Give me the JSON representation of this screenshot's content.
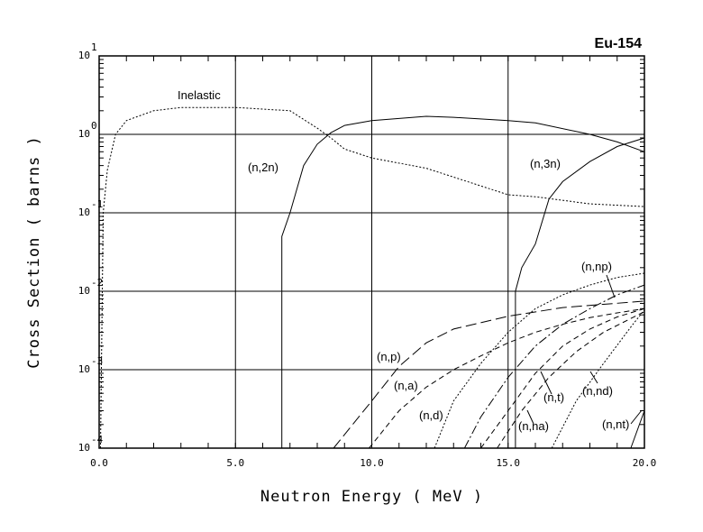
{
  "chart_data": {
    "type": "line",
    "title": "Eu-154",
    "xlabel": "Neutron Energy ( MeV )",
    "ylabel": "Cross Section ( barns )",
    "xlim": [
      0,
      20
    ],
    "ylim": [
      0.0001,
      10
    ],
    "yscale": "log",
    "grid": true,
    "xticks": [
      "0.0",
      "5.0",
      "10.0",
      "15.0",
      "20.0"
    ],
    "yticks": [
      {
        "base": "10",
        "exp": "1"
      },
      {
        "base": "10",
        "exp": "0"
      },
      {
        "base": "10",
        "exp": "-1"
      },
      {
        "base": "10",
        "exp": "-2"
      },
      {
        "base": "10",
        "exp": "-3"
      },
      {
        "base": "10",
        "exp": "-4"
      }
    ],
    "series": [
      {
        "name": "Inelastic",
        "style": "dotted",
        "x": [
          0.05,
          0.15,
          0.3,
          0.5,
          0.6,
          1,
          2,
          3,
          5,
          6,
          7,
          8,
          8.5,
          9,
          10,
          12,
          14,
          15,
          16,
          18,
          20
        ],
        "y": [
          0.0001,
          0.1,
          0.35,
          0.7,
          1.0,
          1.5,
          2.0,
          2.2,
          2.2,
          2.1,
          2.0,
          1.2,
          0.9,
          0.65,
          0.5,
          0.37,
          0.22,
          0.17,
          0.16,
          0.13,
          0.12
        ]
      },
      {
        "name": "(n,2n)",
        "style": "solid",
        "x": [
          6.7,
          6.7,
          7,
          7.5,
          8,
          8.5,
          9,
          10,
          12,
          13,
          15,
          16,
          18,
          19,
          20
        ],
        "y": [
          0.0001,
          0.05,
          0.1,
          0.4,
          0.75,
          1.05,
          1.3,
          1.5,
          1.7,
          1.65,
          1.5,
          1.4,
          1.0,
          0.8,
          0.6
        ]
      },
      {
        "name": "(n,3n)",
        "style": "solid",
        "x": [
          15.27,
          15.27,
          15.5,
          16,
          16.5,
          17,
          18,
          19,
          20
        ],
        "y": [
          0.0001,
          0.01,
          0.02,
          0.04,
          0.15,
          0.25,
          0.45,
          0.7,
          0.9
        ]
      },
      {
        "name": "(n,p)",
        "style": "longdash",
        "x": [
          8.6,
          10,
          11,
          12,
          13,
          15,
          17,
          20
        ],
        "y": [
          0.0001,
          0.0004,
          0.0011,
          0.0022,
          0.0033,
          0.0048,
          0.0062,
          0.0075
        ]
      },
      {
        "name": "(n,a)",
        "style": "dash",
        "x": [
          9.9,
          11,
          12,
          13,
          14,
          15,
          16,
          17,
          18,
          19,
          20
        ],
        "y": [
          0.0001,
          0.0003,
          0.0006,
          0.001,
          0.0015,
          0.0022,
          0.003,
          0.0038,
          0.0046,
          0.0053,
          0.006
        ]
      },
      {
        "name": "(n,d)",
        "style": "dotted",
        "x": [
          12.3,
          13,
          14,
          15,
          16,
          17,
          18,
          19,
          20
        ],
        "y": [
          0.0001,
          0.0004,
          0.0012,
          0.003,
          0.006,
          0.009,
          0.012,
          0.015,
          0.017
        ]
      },
      {
        "name": "(n,np)",
        "style": "dashdot",
        "x": [
          13.4,
          14,
          15,
          16,
          17,
          18,
          19,
          20
        ],
        "y": [
          0.0001,
          0.00025,
          0.0008,
          0.002,
          0.0038,
          0.006,
          0.009,
          0.012
        ]
      },
      {
        "name": "(n,t)",
        "style": "dash",
        "x": [
          14,
          15,
          16,
          17,
          18,
          19,
          20
        ],
        "y": [
          0.0001,
          0.0003,
          0.0009,
          0.002,
          0.0033,
          0.0047,
          0.006
        ]
      },
      {
        "name": "(n,na)",
        "style": "dash",
        "x": [
          14.6,
          15.5,
          16.5,
          17.5,
          18.5,
          20
        ],
        "y": [
          0.0001,
          0.0003,
          0.0008,
          0.0017,
          0.003,
          0.0055
        ]
      },
      {
        "name": "(n,nd)",
        "style": "dotted",
        "x": [
          16.6,
          17.5,
          18.5,
          19.5,
          20
        ],
        "y": [
          0.0001,
          0.0004,
          0.0012,
          0.0035,
          0.0058
        ]
      },
      {
        "name": "(n,nt)",
        "style": "solid",
        "x": [
          19.5,
          20
        ],
        "y": [
          0.0001,
          0.0003
        ]
      }
    ]
  }
}
